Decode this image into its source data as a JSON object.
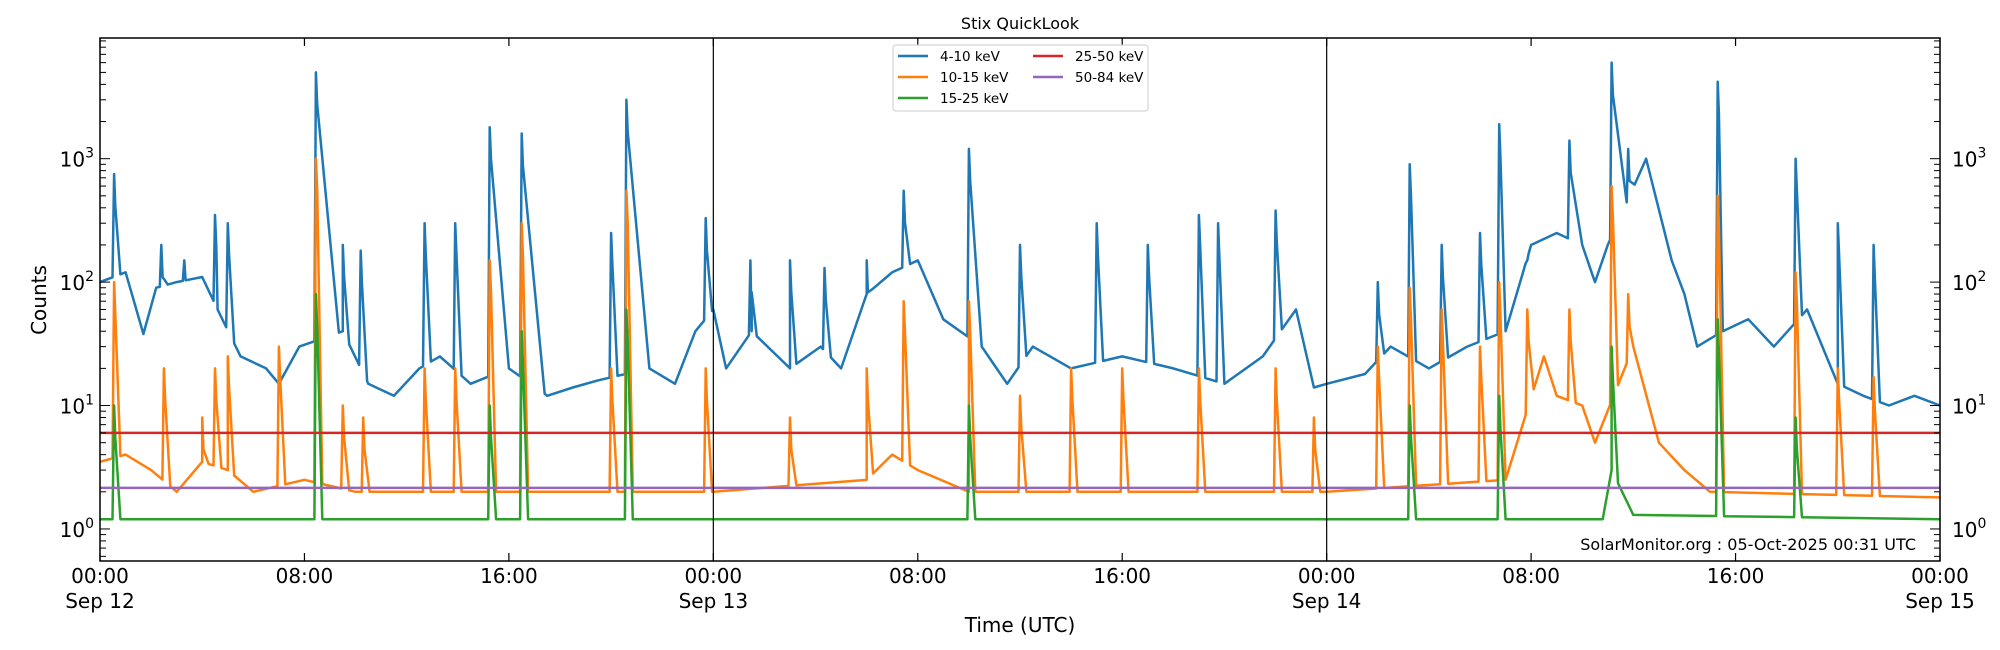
{
  "chart_data": {
    "type": "line",
    "title": "Stix QuickLook",
    "xlabel": "Time (UTC)",
    "ylabel": "Counts",
    "yscale": "log",
    "ylim": [
      0.55,
      9500
    ],
    "xlim": [
      "Sep 12 00:00",
      "Sep 15 00:00"
    ],
    "x_ticks": [
      {
        "time": "Sep 12 00:00",
        "line1": "00:00",
        "line2": "Sep 12"
      },
      {
        "time": "Sep 12 08:00",
        "line1": "08:00",
        "line2": ""
      },
      {
        "time": "Sep 12 16:00",
        "line1": "16:00",
        "line2": ""
      },
      {
        "time": "Sep 13 00:00",
        "line1": "00:00",
        "line2": "Sep 13"
      },
      {
        "time": "Sep 13 08:00",
        "line1": "08:00",
        "line2": ""
      },
      {
        "time": "Sep 13 16:00",
        "line1": "16:00",
        "line2": ""
      },
      {
        "time": "Sep 14 00:00",
        "line1": "00:00",
        "line2": "Sep 14"
      },
      {
        "time": "Sep 14 08:00",
        "line1": "08:00",
        "line2": ""
      },
      {
        "time": "Sep 14 16:00",
        "line1": "16:00",
        "line2": ""
      },
      {
        "time": "Sep 15 00:00",
        "line1": "00:00",
        "line2": "Sep 15"
      }
    ],
    "y_ticks": [
      {
        "value": 1,
        "label": "10",
        "exp": "0"
      },
      {
        "value": 10,
        "label": "10",
        "exp": "1"
      },
      {
        "value": 100,
        "label": "10",
        "exp": "2"
      },
      {
        "value": 1000,
        "label": "10",
        "exp": "3"
      }
    ],
    "day_boundaries": [
      "Sep 13 00:00",
      "Sep 14 00:00"
    ],
    "grid": false,
    "legend_placement": "top-center",
    "annotation": "SolarMonitor.org : 05-Oct-2025 00:31 UTC",
    "series": [
      {
        "name": "4-10 keV",
        "color": "#1f77b4",
        "baseline": [
          [
            "Sep 12 00:00",
            100
          ],
          [
            "Sep 12 01:00",
            120
          ],
          [
            "Sep 12 01:42",
            38
          ],
          [
            "Sep 12 02:12",
            90
          ],
          [
            "Sep 12 03:00",
            100
          ],
          [
            "Sep 12 04:00",
            110
          ],
          [
            "Sep 12 04:36",
            60
          ],
          [
            "Sep 12 05:30",
            25
          ],
          [
            "Sep 12 06:30",
            20
          ],
          [
            "Sep 12 07:00",
            15
          ],
          [
            "Sep 12 07:48",
            30
          ],
          [
            "Sep 12 09:30",
            40
          ],
          [
            "Sep 12 10:30",
            15
          ],
          [
            "Sep 12 11:30",
            12
          ],
          [
            "Sep 12 12:30",
            20
          ],
          [
            "Sep 12 13:18",
            25
          ],
          [
            "Sep 12 14:30",
            15
          ],
          [
            "Sep 12 16:00",
            20
          ],
          [
            "Sep 12 17:30",
            12
          ],
          [
            "Sep 12 18:30",
            14
          ],
          [
            "Sep 12 19:30",
            16
          ],
          [
            "Sep 12 21:30",
            20
          ],
          [
            "Sep 12 22:30",
            15
          ],
          [
            "Sep 12 23:18",
            40
          ],
          [
            "Sep 13 00:00",
            60
          ],
          [
            "Sep 13 00:30",
            20
          ],
          [
            "Sep 13 01:30",
            40
          ],
          [
            "Sep 13 03:00",
            20
          ],
          [
            "Sep 13 04:12",
            30
          ],
          [
            "Sep 13 05:00",
            20
          ],
          [
            "Sep 13 06:00",
            80
          ],
          [
            "Sep 13 07:00",
            120
          ],
          [
            "Sep 13 08:00",
            150
          ],
          [
            "Sep 13 09:00",
            50
          ],
          [
            "Sep 13 10:30",
            30
          ],
          [
            "Sep 13 11:30",
            15
          ],
          [
            "Sep 13 12:30",
            30
          ],
          [
            "Sep 13 14:00",
            20
          ],
          [
            "Sep 13 16:00",
            25
          ],
          [
            "Sep 13 18:00",
            20
          ],
          [
            "Sep 13 20:00",
            15
          ],
          [
            "Sep 13 21:30",
            25
          ],
          [
            "Sep 13 22:48",
            60
          ],
          [
            "Sep 13 23:30",
            14
          ],
          [
            "Sep 14 00:00",
            15
          ],
          [
            "Sep 14 01:30",
            18
          ],
          [
            "Sep 14 02:30",
            30
          ],
          [
            "Sep 14 04:00",
            20
          ],
          [
            "Sep 14 05:30",
            30
          ],
          [
            "Sep 14 07:00",
            40
          ],
          [
            "Sep 14 08:00",
            200
          ],
          [
            "Sep 14 09:00",
            250
          ],
          [
            "Sep 14 10:00",
            200
          ],
          [
            "Sep 14 10:30",
            100
          ],
          [
            "Sep 14 11:00",
            200
          ],
          [
            "Sep 14 12:30",
            1000
          ],
          [
            "Sep 14 13:30",
            150
          ],
          [
            "Sep 14 14:00",
            80
          ],
          [
            "Sep 14 14:30",
            30
          ],
          [
            "Sep 14 15:30",
            40
          ],
          [
            "Sep 14 16:30",
            50
          ],
          [
            "Sep 14 17:30",
            30
          ],
          [
            "Sep 14 18:48",
            60
          ],
          [
            "Sep 14 20:00",
            15
          ],
          [
            "Sep 14 21:00",
            12
          ],
          [
            "Sep 14 22:00",
            10
          ],
          [
            "Sep 14 23:00",
            12
          ],
          [
            "Sep 15 00:00",
            10
          ]
        ],
        "peaks": [
          [
            "Sep 12 00:33",
            750
          ],
          [
            "Sep 12 02:24",
            200
          ],
          [
            "Sep 12 03:18",
            150
          ],
          [
            "Sep 12 04:30",
            350
          ],
          [
            "Sep 12 05:00",
            300
          ],
          [
            "Sep 12 08:27",
            5000
          ],
          [
            "Sep 12 09:30",
            200
          ],
          [
            "Sep 12 10:12",
            180
          ],
          [
            "Sep 12 12:42",
            300
          ],
          [
            "Sep 12 13:54",
            300
          ],
          [
            "Sep 12 15:15",
            1800
          ],
          [
            "Sep 12 16:30",
            1600
          ],
          [
            "Sep 12 20:00",
            250
          ],
          [
            "Sep 12 20:36",
            3000
          ],
          [
            "Sep 12 23:42",
            330
          ],
          [
            "Sep 13 01:27",
            150
          ],
          [
            "Sep 13 03:00",
            150
          ],
          [
            "Sep 13 04:21",
            130
          ],
          [
            "Sep 13 06:00",
            150
          ],
          [
            "Sep 13 07:27",
            550
          ],
          [
            "Sep 13 10:00",
            1200
          ],
          [
            "Sep 13 12:00",
            200
          ],
          [
            "Sep 13 15:00",
            300
          ],
          [
            "Sep 13 17:00",
            200
          ],
          [
            "Sep 13 19:00",
            350
          ],
          [
            "Sep 13 19:45",
            300
          ],
          [
            "Sep 13 22:00",
            380
          ],
          [
            "Sep 14 02:00",
            100
          ],
          [
            "Sep 14 03:15",
            900
          ],
          [
            "Sep 14 04:30",
            200
          ],
          [
            "Sep 14 06:00",
            250
          ],
          [
            "Sep 14 06:45",
            1900
          ],
          [
            "Sep 14 07:51",
            150
          ],
          [
            "Sep 14 09:30",
            1400
          ],
          [
            "Sep 14 11:09",
            6000
          ],
          [
            "Sep 14 11:48",
            1200
          ],
          [
            "Sep 14 15:18",
            4200
          ],
          [
            "Sep 14 18:21",
            1000
          ],
          [
            "Sep 14 20:00",
            300
          ],
          [
            "Sep 14 21:24",
            200
          ]
        ]
      },
      {
        "name": "10-15 keV",
        "color": "#ff7f0e",
        "baseline": [
          [
            "Sep 12 00:00",
            3.5
          ],
          [
            "Sep 12 01:00",
            4
          ],
          [
            "Sep 12 02:00",
            3
          ],
          [
            "Sep 12 03:00",
            2
          ],
          [
            "Sep 12 04:00",
            3.5
          ],
          [
            "Sep 12 05:00",
            3
          ],
          [
            "Sep 12 06:00",
            2
          ],
          [
            "Sep 12 08:00",
            2.5
          ],
          [
            "Sep 12 10:00",
            2
          ],
          [
            "Sep 13 00:00",
            2
          ],
          [
            "Sep 13 06:00",
            2.5
          ],
          [
            "Sep 13 07:00",
            4
          ],
          [
            "Sep 13 08:00",
            3
          ],
          [
            "Sep 13 10:00",
            2
          ],
          [
            "Sep 14 00:00",
            2
          ],
          [
            "Sep 14 07:00",
            2.5
          ],
          [
            "Sep 14 08:30",
            25
          ],
          [
            "Sep 14 09:00",
            12
          ],
          [
            "Sep 14 10:00",
            10
          ],
          [
            "Sep 14 10:30",
            5
          ],
          [
            "Sep 14 12:00",
            30
          ],
          [
            "Sep 14 13:00",
            5
          ],
          [
            "Sep 14 14:00",
            3
          ],
          [
            "Sep 14 15:00",
            2
          ],
          [
            "Sep 15 00:00",
            1.8
          ]
        ],
        "peaks": [
          [
            "Sep 12 00:33",
            100
          ],
          [
            "Sep 12 02:30",
            20
          ],
          [
            "Sep 12 04:00",
            8
          ],
          [
            "Sep 12 04:30",
            20
          ],
          [
            "Sep 12 05:00",
            25
          ],
          [
            "Sep 12 07:00",
            30
          ],
          [
            "Sep 12 08:27",
            1000
          ],
          [
            "Sep 12 09:30",
            10
          ],
          [
            "Sep 12 10:18",
            8
          ],
          [
            "Sep 12 12:42",
            20
          ],
          [
            "Sep 12 13:54",
            20
          ],
          [
            "Sep 12 15:15",
            150
          ],
          [
            "Sep 12 16:30",
            300
          ],
          [
            "Sep 12 20:00",
            20
          ],
          [
            "Sep 12 20:36",
            550
          ],
          [
            "Sep 12 23:42",
            20
          ],
          [
            "Sep 13 03:00",
            8
          ],
          [
            "Sep 13 06:00",
            20
          ],
          [
            "Sep 13 07:27",
            70
          ],
          [
            "Sep 13 10:00",
            70
          ],
          [
            "Sep 13 12:00",
            12
          ],
          [
            "Sep 13 14:00",
            20
          ],
          [
            "Sep 13 16:00",
            20
          ],
          [
            "Sep 13 19:00",
            20
          ],
          [
            "Sep 13 22:00",
            20
          ],
          [
            "Sep 13 23:30",
            8
          ],
          [
            "Sep 14 02:00",
            30
          ],
          [
            "Sep 14 03:15",
            90
          ],
          [
            "Sep 14 04:30",
            60
          ],
          [
            "Sep 14 06:00",
            30
          ],
          [
            "Sep 14 06:45",
            100
          ],
          [
            "Sep 14 07:51",
            60
          ],
          [
            "Sep 14 09:30",
            60
          ],
          [
            "Sep 14 11:09",
            600
          ],
          [
            "Sep 14 11:48",
            80
          ],
          [
            "Sep 14 15:18",
            500
          ],
          [
            "Sep 14 18:21",
            120
          ],
          [
            "Sep 14 20:00",
            20
          ],
          [
            "Sep 14 21:24",
            17
          ]
        ]
      },
      {
        "name": "15-25 keV",
        "color": "#2ca02c",
        "baseline": [
          [
            "Sep 12 00:00",
            1.2
          ],
          [
            "Sep 14 10:48",
            1.2
          ],
          [
            "Sep 14 11:09",
            3
          ],
          [
            "Sep 14 12:00",
            1.3
          ],
          [
            "Sep 15 00:00",
            1.2
          ]
        ],
        "peaks": [
          [
            "Sep 12 00:33",
            10
          ],
          [
            "Sep 12 08:27",
            80
          ],
          [
            "Sep 12 15:15",
            10
          ],
          [
            "Sep 12 16:30",
            40
          ],
          [
            "Sep 12 20:36",
            60
          ],
          [
            "Sep 13 10:00",
            10
          ],
          [
            "Sep 14 03:15",
            10
          ],
          [
            "Sep 14 06:45",
            12
          ],
          [
            "Sep 14 11:09",
            30
          ],
          [
            "Sep 14 15:18",
            50
          ],
          [
            "Sep 14 18:21",
            8
          ]
        ]
      },
      {
        "name": "25-50 keV",
        "color": "#d62728",
        "baseline": [
          [
            "Sep 12 00:00",
            6
          ],
          [
            "Sep 15 00:00",
            6
          ]
        ],
        "peaks": []
      },
      {
        "name": "50-84 keV",
        "color": "#9467bd",
        "baseline": [
          [
            "Sep 12 00:00",
            2.15
          ],
          [
            "Sep 15 00:00",
            2.15
          ]
        ],
        "peaks": []
      }
    ]
  }
}
